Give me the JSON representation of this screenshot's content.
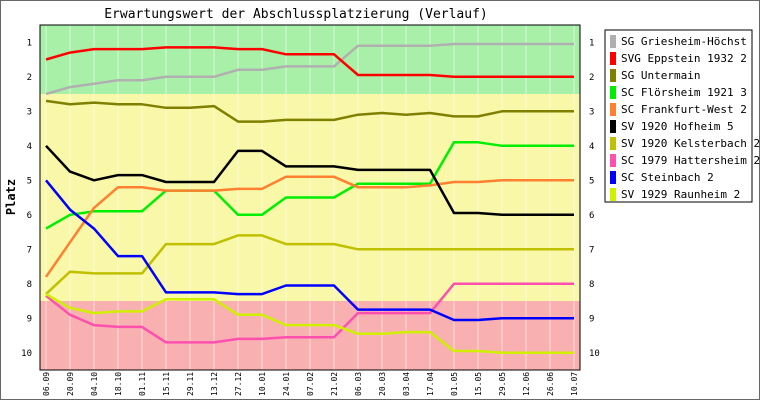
{
  "chart_data": {
    "type": "line",
    "title": "Erwartungswert der Abschlussplatzierung (Verlauf)",
    "ylabel": "Platz",
    "xlabel": "",
    "ylim": [
      0.5,
      10.5
    ],
    "y_inverted": true,
    "y_ticks": [
      "1",
      "2",
      "3",
      "4",
      "5",
      "6",
      "7",
      "8",
      "9",
      "10"
    ],
    "x": [
      "06.09",
      "20.09",
      "04.10",
      "18.10",
      "01.11",
      "15.11",
      "29.11",
      "13.12",
      "27.12",
      "10.01",
      "24.01",
      "07.02",
      "21.02",
      "06.03",
      "20.03",
      "03.04",
      "17.04",
      "01.05",
      "15.05",
      "29.05",
      "12.06",
      "26.06",
      "10.07"
    ],
    "bands": [
      {
        "from": 0.5,
        "to": 2.5,
        "color": "#a8f0a8"
      },
      {
        "from": 2.5,
        "to": 8.5,
        "color": "#f8f8a8"
      },
      {
        "from": 8.5,
        "to": 10.5,
        "color": "#f8b0b0"
      }
    ],
    "legend_position": "right",
    "series": [
      {
        "name": "SG Griesheim-Höchst",
        "color": "#b0b0b0",
        "values": [
          2.5,
          2.3,
          2.2,
          2.1,
          2.1,
          2.0,
          2.0,
          2.0,
          1.8,
          1.8,
          1.7,
          1.7,
          1.7,
          1.1,
          1.1,
          1.1,
          1.1,
          1.05,
          1.05,
          1.05,
          1.05,
          1.05,
          1.05
        ]
      },
      {
        "name": "SVG Eppstein 1932 2",
        "color": "#ff0000",
        "values": [
          1.5,
          1.3,
          1.2,
          1.2,
          1.2,
          1.15,
          1.15,
          1.15,
          1.2,
          1.2,
          1.35,
          1.35,
          1.35,
          1.95,
          1.95,
          1.95,
          1.95,
          2.0,
          2.0,
          2.0,
          2.0,
          2.0,
          2.0
        ]
      },
      {
        "name": "SG Untermain",
        "color": "#808000",
        "values": [
          2.7,
          2.8,
          2.75,
          2.8,
          2.8,
          2.9,
          2.9,
          2.85,
          3.3,
          3.3,
          3.25,
          3.25,
          3.25,
          3.1,
          3.05,
          3.1,
          3.05,
          3.15,
          3.15,
          3.0,
          3.0,
          3.0,
          3.0
        ]
      },
      {
        "name": "SC Flörsheim 1921 3",
        "color": "#00ee00",
        "values": [
          6.4,
          6.0,
          5.9,
          5.9,
          5.9,
          5.3,
          5.3,
          5.3,
          6.0,
          6.0,
          5.5,
          5.5,
          5.5,
          5.1,
          5.1,
          5.1,
          5.1,
          3.9,
          3.9,
          4.0,
          4.0,
          4.0,
          4.0
        ]
      },
      {
        "name": "SC Frankfurt-West 2",
        "color": "#ff8030",
        "values": [
          7.8,
          6.8,
          5.8,
          5.2,
          5.2,
          5.3,
          5.3,
          5.3,
          5.25,
          5.25,
          4.9,
          4.9,
          4.9,
          5.2,
          5.2,
          5.2,
          5.15,
          5.05,
          5.05,
          5.0,
          5.0,
          5.0,
          5.0
        ]
      },
      {
        "name": "SV 1920 Hofheim 5",
        "color": "#000000",
        "values": [
          4.0,
          4.75,
          5.0,
          4.85,
          4.85,
          5.05,
          5.05,
          5.05,
          4.15,
          4.15,
          4.6,
          4.6,
          4.6,
          4.7,
          4.7,
          4.7,
          4.7,
          5.95,
          5.95,
          6.0,
          6.0,
          6.0,
          6.0
        ]
      },
      {
        "name": "SV 1920 Kelsterbach 2",
        "color": "#c0c000",
        "values": [
          8.3,
          7.65,
          7.7,
          7.7,
          7.7,
          6.85,
          6.85,
          6.85,
          6.6,
          6.6,
          6.85,
          6.85,
          6.85,
          7.0,
          7.0,
          7.0,
          7.0,
          7.0,
          7.0,
          7.0,
          7.0,
          7.0,
          7.0
        ]
      },
      {
        "name": "SC 1979 Hattersheim 2",
        "color": "#ff50b0",
        "values": [
          8.35,
          8.9,
          9.2,
          9.25,
          9.25,
          9.7,
          9.7,
          9.7,
          9.6,
          9.6,
          9.55,
          9.55,
          9.55,
          8.85,
          8.85,
          8.85,
          8.85,
          8.0,
          8.0,
          8.0,
          8.0,
          8.0,
          8.0
        ]
      },
      {
        "name": "SC Steinbach 2",
        "color": "#0000ff",
        "values": [
          5.0,
          5.85,
          6.4,
          7.2,
          7.2,
          8.25,
          8.25,
          8.25,
          8.3,
          8.3,
          8.05,
          8.05,
          8.05,
          8.75,
          8.75,
          8.75,
          8.75,
          9.05,
          9.05,
          9.0,
          9.0,
          9.0,
          9.0
        ]
      },
      {
        "name": "SV 1929 Raunheim 2",
        "color": "#d0f000",
        "values": [
          8.3,
          8.7,
          8.85,
          8.8,
          8.8,
          8.45,
          8.45,
          8.45,
          8.9,
          8.9,
          9.2,
          9.2,
          9.2,
          9.45,
          9.45,
          9.4,
          9.4,
          9.95,
          9.95,
          10.0,
          10.0,
          10.0,
          10.0
        ]
      }
    ]
  }
}
